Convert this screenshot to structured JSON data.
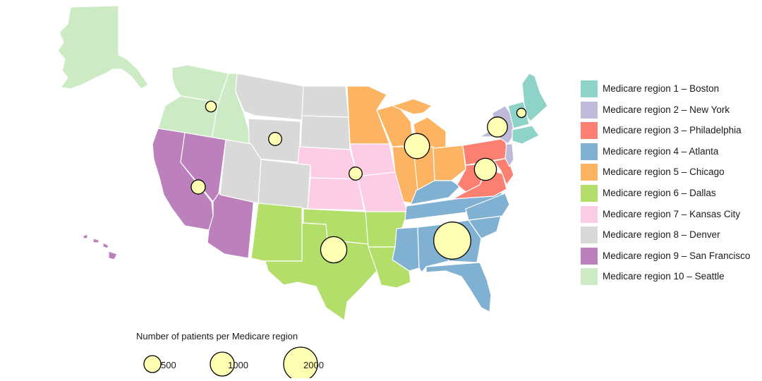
{
  "regions": [
    {
      "name": "region-1",
      "label": "Medicare region 1 – Boston",
      "color": "#8dd3c7"
    },
    {
      "name": "region-2",
      "label": "Medicare region 2 – New York",
      "color": "#bebada"
    },
    {
      "name": "region-3",
      "label": "Medicare region 3 – Philadelphia",
      "color": "#fb8072"
    },
    {
      "name": "region-4",
      "label": "Medicare region 4 – Atlanta",
      "color": "#80b1d3"
    },
    {
      "name": "region-5",
      "label": "Medicare region 5 – Chicago",
      "color": "#fdb462"
    },
    {
      "name": "region-6",
      "label": "Medicare region 6 – Dallas",
      "color": "#b3de69"
    },
    {
      "name": "region-7",
      "label": "Medicare region 7 – Kansas City",
      "color": "#fccde5"
    },
    {
      "name": "region-8",
      "label": "Medicare region 8 – Denver",
      "color": "#d9d9d9"
    },
    {
      "name": "region-9",
      "label": "Medicare region 9 – San Francisco",
      "color": "#bc80bd"
    },
    {
      "name": "region-10",
      "label": "Medicare region 10 – Seattle",
      "color": "#ccebc5"
    }
  ],
  "patients_per_region": [
    {
      "region": "region-1",
      "patients": 150
    },
    {
      "region": "region-2",
      "patients": 700
    },
    {
      "region": "region-3",
      "patients": 850
    },
    {
      "region": "region-4",
      "patients": 2400
    },
    {
      "region": "region-5",
      "patients": 1100
    },
    {
      "region": "region-6",
      "patients": 1200
    },
    {
      "region": "region-7",
      "patients": 300
    },
    {
      "region": "region-8",
      "patients": 300
    },
    {
      "region": "region-9",
      "patients": 350
    },
    {
      "region": "region-10",
      "patients": 200
    }
  ],
  "bubble_color": "#ffffb3",
  "size_legend": {
    "title": "Number of patients per Medicare region",
    "items": [
      {
        "value": 500,
        "label": "500"
      },
      {
        "value": 1000,
        "label": "1000"
      },
      {
        "value": 2000,
        "label": "2000"
      }
    ]
  }
}
